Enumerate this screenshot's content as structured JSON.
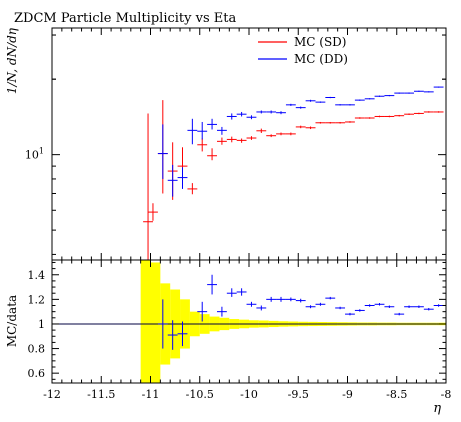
{
  "chart_data": [
    {
      "type": "scatter",
      "panel": "main",
      "title": "ZDCM Particle Multiplicity vs Eta",
      "xlabel": "",
      "ylabel": "1/N, dN/dη",
      "yscale": "log",
      "ylim": [
        3.8,
        32
      ],
      "yticks": [
        {
          "value": 10,
          "label": "10",
          "sup": "1"
        }
      ],
      "legend": {
        "position": "top-right"
      },
      "series": [
        {
          "name": "MC (SD)",
          "color": "#ff0000",
          "points": [
            {
              "x": -11.025,
              "y": 5.4,
              "lo": 3.5,
              "hi": 14.6
            },
            {
              "x": -10.975,
              "y": 5.9,
              "lo": 5.45,
              "hi": 6.4
            },
            {
              "x": -10.875,
              "y": 10.1,
              "lo": 7.0,
              "hi": 16.5
            },
            {
              "x": -10.775,
              "y": 8.6,
              "lo": 6.6,
              "hi": 11.2
            },
            {
              "x": -10.675,
              "y": 9.0,
              "lo": 7.9,
              "hi": 10.7
            },
            {
              "x": -10.575,
              "y": 7.3,
              "lo": 6.95,
              "hi": 7.7
            },
            {
              "x": -10.475,
              "y": 10.95,
              "lo": 10.3,
              "hi": 11.6
            },
            {
              "x": -10.375,
              "y": 9.9,
              "lo": 9.5,
              "hi": 10.6
            },
            {
              "x": -10.275,
              "y": 11.3,
              "lo": 10.95,
              "hi": 11.7
            },
            {
              "x": -10.175,
              "y": 11.5,
              "lo": 11.2,
              "hi": 11.8
            },
            {
              "x": -10.075,
              "y": 11.4,
              "lo": 11.15,
              "hi": 11.6
            },
            {
              "x": -9.975,
              "y": 11.65,
              "lo": 11.45,
              "hi": 11.85
            },
            {
              "x": -9.875,
              "y": 12.45,
              "lo": 12.2,
              "hi": 12.7
            },
            {
              "x": -9.775,
              "y": 11.9,
              "lo": 11.75,
              "hi": 12.05
            },
            {
              "x": -9.675,
              "y": 12.1,
              "lo": 11.95,
              "hi": 12.25
            },
            {
              "x": -9.575,
              "y": 12.1,
              "lo": 11.95,
              "hi": 12.25
            },
            {
              "x": -9.475,
              "y": 12.9,
              "lo": 12.75,
              "hi": 13.05
            },
            {
              "x": -9.375,
              "y": 12.8,
              "lo": 12.65,
              "hi": 12.95
            },
            {
              "x": -9.275,
              "y": 13.4,
              "lo": 13.3,
              "hi": 13.5
            },
            {
              "x": -9.175,
              "y": 13.4,
              "lo": 13.3,
              "hi": 13.5
            },
            {
              "x": -9.075,
              "y": 13.4,
              "lo": 13.3,
              "hi": 13.5
            },
            {
              "x": -8.975,
              "y": 13.5,
              "lo": 13.4,
              "hi": 13.6
            },
            {
              "x": -8.875,
              "y": 14.0,
              "lo": 13.9,
              "hi": 14.1
            },
            {
              "x": -8.775,
              "y": 14.0,
              "lo": 13.9,
              "hi": 14.1
            },
            {
              "x": -8.675,
              "y": 14.2,
              "lo": 14.1,
              "hi": 14.3
            },
            {
              "x": -8.575,
              "y": 14.2,
              "lo": 14.1,
              "hi": 14.3
            },
            {
              "x": -8.475,
              "y": 14.3,
              "lo": 14.2,
              "hi": 14.4
            },
            {
              "x": -8.375,
              "y": 14.5,
              "lo": 14.4,
              "hi": 14.6
            },
            {
              "x": -8.275,
              "y": 14.6,
              "lo": 14.5,
              "hi": 14.7
            },
            {
              "x": -8.175,
              "y": 14.8,
              "lo": 14.7,
              "hi": 14.9
            },
            {
              "x": -8.075,
              "y": 14.8,
              "lo": 14.7,
              "hi": 14.9
            }
          ]
        },
        {
          "name": "MC (DD)",
          "color": "#0000ff",
          "points": [
            {
              "x": -10.875,
              "y": 10.1,
              "lo": 8.0,
              "hi": 13.2
            },
            {
              "x": -10.775,
              "y": 7.9,
              "lo": 6.8,
              "hi": 9.1
            },
            {
              "x": -10.675,
              "y": 8.1,
              "lo": 7.3,
              "hi": 8.9
            },
            {
              "x": -10.575,
              "y": 12.5,
              "lo": 11.0,
              "hi": 13.9
            },
            {
              "x": -10.475,
              "y": 12.4,
              "lo": 11.5,
              "hi": 13.5
            },
            {
              "x": -10.375,
              "y": 13.2,
              "lo": 12.6,
              "hi": 13.9
            },
            {
              "x": -10.275,
              "y": 12.5,
              "lo": 12.0,
              "hi": 12.9
            },
            {
              "x": -10.175,
              "y": 14.2,
              "lo": 13.8,
              "hi": 14.6
            },
            {
              "x": -10.075,
              "y": 14.5,
              "lo": 14.2,
              "hi": 14.8
            },
            {
              "x": -9.975,
              "y": 14.1,
              "lo": 13.85,
              "hi": 14.35
            },
            {
              "x": -9.875,
              "y": 14.8,
              "lo": 14.6,
              "hi": 15.0
            },
            {
              "x": -9.775,
              "y": 14.8,
              "lo": 14.6,
              "hi": 15.0
            },
            {
              "x": -9.675,
              "y": 14.7,
              "lo": 14.5,
              "hi": 14.9
            },
            {
              "x": -9.575,
              "y": 15.8,
              "lo": 15.65,
              "hi": 15.95
            },
            {
              "x": -9.475,
              "y": 15.4,
              "lo": 15.25,
              "hi": 15.55
            },
            {
              "x": -9.375,
              "y": 16.4,
              "lo": 16.25,
              "hi": 16.55
            },
            {
              "x": -9.275,
              "y": 16.2,
              "lo": 16.1,
              "hi": 16.3
            },
            {
              "x": -9.175,
              "y": 16.9,
              "lo": 16.8,
              "hi": 17.0
            },
            {
              "x": -9.075,
              "y": 15.8,
              "lo": 15.7,
              "hi": 15.9
            },
            {
              "x": -8.975,
              "y": 15.8,
              "lo": 15.7,
              "hi": 15.9
            },
            {
              "x": -8.875,
              "y": 16.5,
              "lo": 16.4,
              "hi": 16.6
            },
            {
              "x": -8.775,
              "y": 16.7,
              "lo": 16.6,
              "hi": 16.8
            },
            {
              "x": -8.675,
              "y": 17.1,
              "lo": 17.0,
              "hi": 17.2
            },
            {
              "x": -8.575,
              "y": 17.2,
              "lo": 17.1,
              "hi": 17.3
            },
            {
              "x": -8.475,
              "y": 17.6,
              "lo": 17.5,
              "hi": 17.7
            },
            {
              "x": -8.375,
              "y": 17.6,
              "lo": 17.5,
              "hi": 17.7
            },
            {
              "x": -8.275,
              "y": 17.9,
              "lo": 17.8,
              "hi": 18.0
            },
            {
              "x": -8.175,
              "y": 17.8,
              "lo": 17.7,
              "hi": 17.9
            },
            {
              "x": -8.075,
              "y": 18.6,
              "lo": 18.5,
              "hi": 18.7
            }
          ]
        }
      ]
    },
    {
      "type": "scatter",
      "panel": "ratio",
      "xlabel": "η",
      "ylabel": "MC/data",
      "xlim": [
        -12,
        -8
      ],
      "ylim": [
        0.52,
        1.52
      ],
      "xticks": [
        "-12",
        "-11.5",
        "-11",
        "-10.5",
        "-10",
        "-9.5",
        "-9",
        "-8.5",
        "-8"
      ],
      "yticks": [
        "0.6",
        "0.8",
        "1",
        "1.2",
        "1.4"
      ],
      "reference_line": 1,
      "band_color": "#ffff00",
      "band_halfwidth": [
        {
          "x0": -11.1,
          "x1": -11.0,
          "h": 1.0
        },
        {
          "x0": -11.0,
          "x1": -10.9,
          "h": 0.5
        },
        {
          "x0": -10.9,
          "x1": -10.8,
          "h": 0.33
        },
        {
          "x0": -10.8,
          "x1": -10.7,
          "h": 0.28
        },
        {
          "x0": -10.7,
          "x1": -10.6,
          "h": 0.2
        },
        {
          "x0": -10.6,
          "x1": -10.5,
          "h": 0.1
        },
        {
          "x0": -10.5,
          "x1": -10.4,
          "h": 0.08
        },
        {
          "x0": -10.4,
          "x1": -10.3,
          "h": 0.06
        },
        {
          "x0": -10.3,
          "x1": -10.2,
          "h": 0.05
        },
        {
          "x0": -10.2,
          "x1": -10.1,
          "h": 0.04
        },
        {
          "x0": -10.1,
          "x1": -10.0,
          "h": 0.035
        },
        {
          "x0": -10.0,
          "x1": -9.9,
          "h": 0.03
        },
        {
          "x0": -9.9,
          "x1": -9.8,
          "h": 0.028
        },
        {
          "x0": -9.8,
          "x1": -9.7,
          "h": 0.025
        },
        {
          "x0": -9.7,
          "x1": -9.6,
          "h": 0.022
        },
        {
          "x0": -9.6,
          "x1": -9.5,
          "h": 0.02
        },
        {
          "x0": -9.5,
          "x1": -9.4,
          "h": 0.018
        },
        {
          "x0": -9.4,
          "x1": -9.3,
          "h": 0.017
        },
        {
          "x0": -9.3,
          "x1": -9.2,
          "h": 0.016
        },
        {
          "x0": -9.2,
          "x1": -9.1,
          "h": 0.015
        },
        {
          "x0": -9.1,
          "x1": -9.0,
          "h": 0.014
        },
        {
          "x0": -9.0,
          "x1": -8.9,
          "h": 0.013
        },
        {
          "x0": -8.9,
          "x1": -8.8,
          "h": 0.012
        },
        {
          "x0": -8.8,
          "x1": -8.7,
          "h": 0.012
        },
        {
          "x0": -8.7,
          "x1": -8.6,
          "h": 0.011
        },
        {
          "x0": -8.6,
          "x1": -8.5,
          "h": 0.011
        },
        {
          "x0": -8.5,
          "x1": -8.4,
          "h": 0.01
        },
        {
          "x0": -8.4,
          "x1": -8.3,
          "h": 0.01
        },
        {
          "x0": -8.3,
          "x1": -8.2,
          "h": 0.01
        },
        {
          "x0": -8.2,
          "x1": -8.1,
          "h": 0.01
        },
        {
          "x0": -8.1,
          "x1": -8.0,
          "h": 0.01
        }
      ],
      "series": [
        {
          "color": "#0000ff",
          "points": [
            {
              "x": -10.875,
              "y": 1.0,
              "lo": 0.8,
              "hi": 1.2
            },
            {
              "x": -10.775,
              "y": 0.91,
              "lo": 0.79,
              "hi": 1.03
            },
            {
              "x": -10.675,
              "y": 0.92,
              "lo": 0.82,
              "hi": 1.02
            },
            {
              "x": -10.475,
              "y": 1.1,
              "lo": 1.02,
              "hi": 1.18
            },
            {
              "x": -10.375,
              "y": 1.32,
              "lo": 1.24,
              "hi": 1.4
            },
            {
              "x": -10.275,
              "y": 1.1,
              "lo": 1.06,
              "hi": 1.14
            },
            {
              "x": -10.175,
              "y": 1.25,
              "lo": 1.22,
              "hi": 1.29
            },
            {
              "x": -10.075,
              "y": 1.26,
              "lo": 1.23,
              "hi": 1.29
            },
            {
              "x": -9.975,
              "y": 1.16,
              "lo": 1.14,
              "hi": 1.18
            },
            {
              "x": -9.875,
              "y": 1.13,
              "lo": 1.11,
              "hi": 1.15
            },
            {
              "x": -9.775,
              "y": 1.2,
              "lo": 1.18,
              "hi": 1.22
            },
            {
              "x": -9.675,
              "y": 1.2,
              "lo": 1.18,
              "hi": 1.22
            },
            {
              "x": -9.575,
              "y": 1.2,
              "lo": 1.185,
              "hi": 1.215
            },
            {
              "x": -9.475,
              "y": 1.19,
              "lo": 1.175,
              "hi": 1.205
            },
            {
              "x": -9.375,
              "y": 1.14,
              "lo": 1.128,
              "hi": 1.152
            },
            {
              "x": -9.275,
              "y": 1.16,
              "lo": 1.148,
              "hi": 1.172
            },
            {
              "x": -9.175,
              "y": 1.21,
              "lo": 1.2,
              "hi": 1.22
            },
            {
              "x": -9.075,
              "y": 1.13,
              "lo": 1.12,
              "hi": 1.14
            },
            {
              "x": -8.975,
              "y": 1.08,
              "lo": 1.07,
              "hi": 1.09
            },
            {
              "x": -8.875,
              "y": 1.11,
              "lo": 1.1,
              "hi": 1.12
            },
            {
              "x": -8.775,
              "y": 1.15,
              "lo": 1.14,
              "hi": 1.16
            },
            {
              "x": -8.675,
              "y": 1.16,
              "lo": 1.15,
              "hi": 1.17
            },
            {
              "x": -8.575,
              "y": 1.14,
              "lo": 1.13,
              "hi": 1.15
            },
            {
              "x": -8.475,
              "y": 1.08,
              "lo": 1.07,
              "hi": 1.09
            },
            {
              "x": -8.375,
              "y": 1.14,
              "lo": 1.13,
              "hi": 1.15
            },
            {
              "x": -8.275,
              "y": 1.14,
              "lo": 1.13,
              "hi": 1.15
            },
            {
              "x": -8.175,
              "y": 1.12,
              "lo": 1.11,
              "hi": 1.13
            },
            {
              "x": -8.075,
              "y": 1.15,
              "lo": 1.14,
              "hi": 1.16
            }
          ]
        }
      ]
    }
  ]
}
